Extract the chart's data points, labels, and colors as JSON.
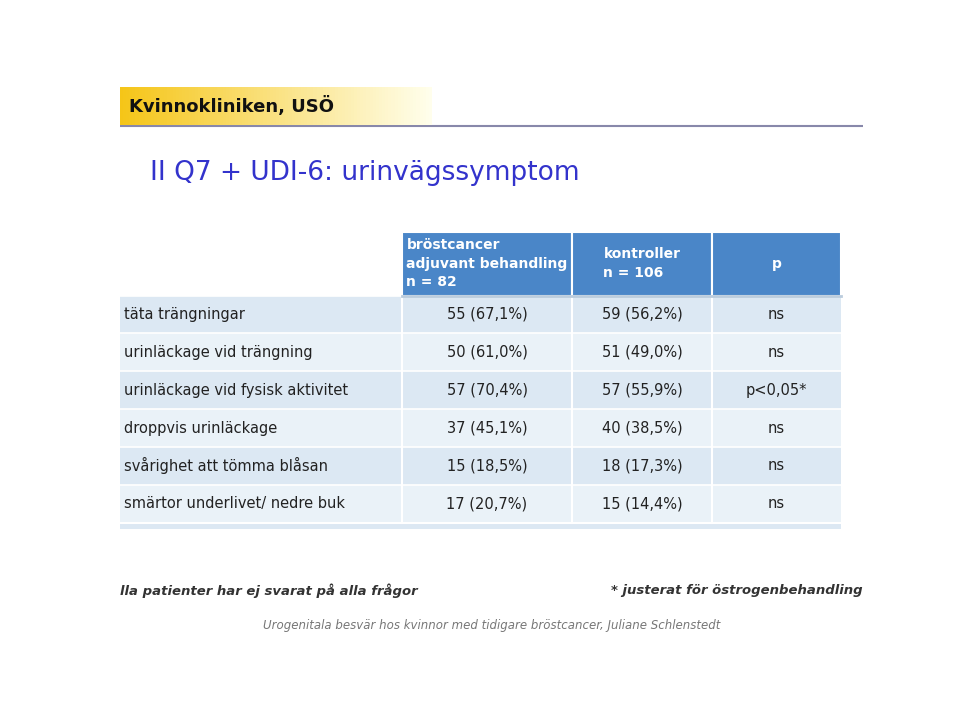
{
  "title": "II Q7 + UDI-6: urinvägssymptom",
  "header_logo": "Kvinnokliniken, USÖ",
  "col_headers": [
    "bröstcancer\nadjuvant behandling\nn = 82",
    "kontroller\nn = 106",
    "p"
  ],
  "rows": [
    {
      "label": "täta trängningar",
      "col1": "55 (67,1%)",
      "col2": "59 (56,2%)",
      "col3": "ns"
    },
    {
      "label": "urinläckage vid trängning",
      "col1": "50 (61,0%)",
      "col2": "51 (49,0%)",
      "col3": "ns"
    },
    {
      "label": "urinläckage vid fysisk aktivitet",
      "col1": "57 (70,4%)",
      "col2": "57 (55,9%)",
      "col3": "p<0,05*"
    },
    {
      "label": "droppvis urinläckage",
      "col1": "37 (45,1%)",
      "col2": "40 (38,5%)",
      "col3": "ns"
    },
    {
      "label": "svårighet att tömma blåsan",
      "col1": "15 (18,5%)",
      "col2": "18 (17,3%)",
      "col3": "ns"
    },
    {
      "label": "smärtor underlivet/ nedre buk",
      "col1": "17 (20,7%)",
      "col2": "15 (14,4%)",
      "col3": "ns"
    }
  ],
  "footer_left": "lla patienter har ej svarat på alla frågor",
  "footer_right": "* justerat för östrogenbehandling",
  "footer_bottom": "Urogenitala besvär hos kvinnor med tidigare bröstcancer, Juliane Schlenstedt",
  "header_bg": "#4a86c8",
  "row_bg": "#dce8f3",
  "row_bg_alt": "#eaf2f8",
  "white_bg": "#ffffff",
  "title_color": "#3333cc",
  "logo_text_color": "#111111",
  "logo_bg_start": "#f5c518",
  "logo_bg_end": "#ffffff",
  "header_text_color": "#ffffff",
  "body_text_color": "#222222",
  "separator_color": "#aaaacc",
  "fig_width": 9.59,
  "fig_height": 7.23,
  "dpi": 100
}
